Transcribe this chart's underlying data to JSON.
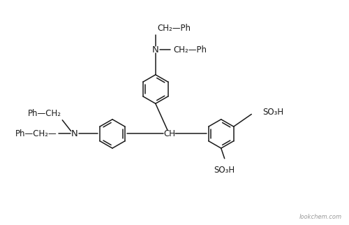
{
  "bg": "#ffffff",
  "lc": "#1a1a1a",
  "tc": "#1a1a1a",
  "fs": 8.5,
  "lw": 1.1,
  "watermark": "lookchem.com",
  "xlim": [
    0,
    10
  ],
  "ylim": [
    0,
    6.44
  ]
}
